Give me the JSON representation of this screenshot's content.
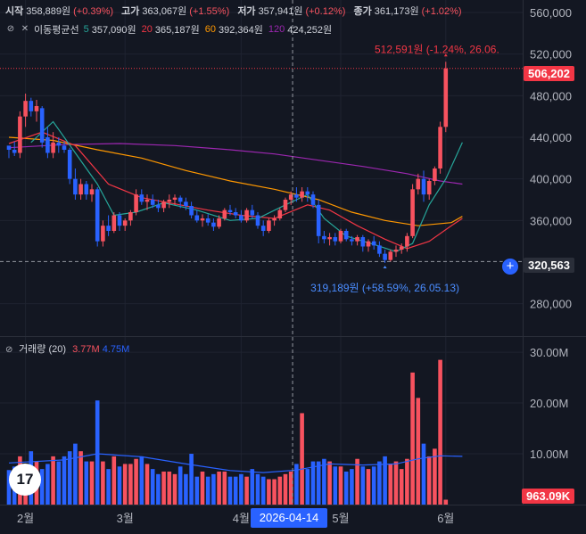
{
  "ohlc": {
    "open_label": "시작",
    "open": "358,889원",
    "open_chg": "(+0.39%)",
    "high_label": "고가",
    "high": "363,067원",
    "high_chg": "(+1.55%)",
    "low_label": "저가",
    "low": "357,941원",
    "low_chg": "(+0.12%)",
    "close_label": "종가",
    "close": "361,173원",
    "close_chg": "(+1.02%)"
  },
  "ma_legend": {
    "name": "이동평균선",
    "items": [
      {
        "period": "5",
        "value": "357,090원",
        "color": "#26a69a"
      },
      {
        "period": "20",
        "value": "365,187원",
        "color": "#f23645"
      },
      {
        "period": "60",
        "value": "392,364원",
        "color": "#ff9800"
      },
      {
        "period": "120",
        "value": "424,252원",
        "color": "#9c27b0"
      }
    ]
  },
  "volume_legend": {
    "name": "거래량 (20)",
    "up": "3.77M",
    "down": "4.75M"
  },
  "annotations": {
    "high_label": "512,591원 (-1.24%, 26.06.",
    "low_label": "319,189원 (+58.59%, 26.05.13)"
  },
  "badges": {
    "last_price": "506,202",
    "crosshair_price": "320,563",
    "last_volume": "963.09K",
    "crosshair_date": "2026-04-14"
  },
  "logo": "17",
  "colors": {
    "up": "#f7525f",
    "down": "#2962ff",
    "bg": "#131722",
    "ma5": "#26a69a",
    "ma20": "#f23645",
    "ma60": "#ff9800",
    "ma120": "#9c27b0",
    "vol_ma": "#2962ff"
  },
  "chart_data": {
    "type": "candlestick",
    "price_axis": {
      "ticks": [
        "560,000",
        "520,000",
        "480,000",
        "440,000",
        "400,000",
        "360,000",
        "280,000"
      ],
      "ylim": [
        248000,
        572000
      ]
    },
    "volume_axis": {
      "ticks": [
        "30.00M",
        "20.00M",
        "10.00M"
      ],
      "ylim": [
        0,
        33000000
      ]
    },
    "x_ticks": [
      {
        "label": "2월",
        "index": 3
      },
      {
        "label": "3월",
        "index": 21
      },
      {
        "label": "4월",
        "index": 42
      },
      {
        "label": "5월",
        "index": 60
      },
      {
        "label": "6월",
        "index": 79
      }
    ],
    "candles": [
      [
        432000,
        431000,
        420000,
        428000,
        6800000
      ],
      [
        428000,
        436000,
        422000,
        425000,
        7500000
      ],
      [
        425000,
        465000,
        420000,
        460000,
        9500000
      ],
      [
        460000,
        482000,
        450000,
        475000,
        7500000
      ],
      [
        475000,
        478000,
        460000,
        465000,
        10500000
      ],
      [
        465000,
        476000,
        455000,
        470000,
        8500000
      ],
      [
        468000,
        470000,
        430000,
        435000,
        7000000
      ],
      [
        440000,
        450000,
        420000,
        425000,
        8000000
      ],
      [
        425000,
        445000,
        420000,
        435000,
        9500000
      ],
      [
        435000,
        440000,
        425000,
        432000,
        8500000
      ],
      [
        432000,
        436000,
        425000,
        428000,
        9500000
      ],
      [
        428000,
        430000,
        395000,
        400000,
        10500000
      ],
      [
        400000,
        410000,
        380000,
        385000,
        12000000
      ],
      [
        385000,
        400000,
        380000,
        395000,
        10500000
      ],
      [
        395000,
        398000,
        380000,
        385000,
        8500000
      ],
      [
        385000,
        395000,
        378000,
        390000,
        8500000
      ],
      [
        390000,
        392000,
        335000,
        340000,
        20500000
      ],
      [
        340000,
        360000,
        335000,
        355000,
        8500000
      ],
      [
        355000,
        365000,
        345000,
        350000,
        7000000
      ],
      [
        350000,
        368000,
        348000,
        365000,
        9500000
      ],
      [
        365000,
        368000,
        350000,
        355000,
        7500000
      ],
      [
        355000,
        362000,
        350000,
        360000,
        8000000
      ],
      [
        360000,
        370000,
        355000,
        368000,
        8000000
      ],
      [
        368000,
        390000,
        365000,
        385000,
        9000000
      ],
      [
        385000,
        390000,
        375000,
        378000,
        9500000
      ],
      [
        378000,
        385000,
        370000,
        380000,
        8000000
      ],
      [
        380000,
        385000,
        372000,
        375000,
        7000000
      ],
      [
        375000,
        380000,
        368000,
        372000,
        6000000
      ],
      [
        372000,
        380000,
        368000,
        378000,
        6500000
      ],
      [
        378000,
        385000,
        372000,
        380000,
        6500000
      ],
      [
        380000,
        385000,
        375000,
        382000,
        6000000
      ],
      [
        382000,
        384000,
        372000,
        378000,
        7500000
      ],
      [
        378000,
        382000,
        370000,
        374000,
        6000000
      ],
      [
        374000,
        378000,
        362000,
        365000,
        10000000
      ],
      [
        365000,
        370000,
        358000,
        360000,
        5500000
      ],
      [
        360000,
        366000,
        354000,
        362000,
        6500000
      ],
      [
        362000,
        366000,
        355000,
        358000,
        5500000
      ],
      [
        358000,
        362000,
        350000,
        354000,
        6000000
      ],
      [
        354000,
        365000,
        352000,
        362000,
        6500000
      ],
      [
        362000,
        372000,
        360000,
        370000,
        6500000
      ],
      [
        370000,
        375000,
        365000,
        368000,
        5500000
      ],
      [
        368000,
        372000,
        362000,
        365000,
        5500000
      ],
      [
        365000,
        370000,
        358000,
        360000,
        6000000
      ],
      [
        360000,
        372000,
        358000,
        370000,
        5500000
      ],
      [
        370000,
        375000,
        362000,
        365000,
        7000000
      ],
      [
        365000,
        368000,
        352000,
        355000,
        6000000
      ],
      [
        355000,
        360000,
        345000,
        350000,
        5500000
      ],
      [
        350000,
        362000,
        348000,
        360000,
        5000000
      ],
      [
        360000,
        365000,
        355000,
        362000,
        5000000
      ],
      [
        362000,
        372000,
        360000,
        370000,
        5500000
      ],
      [
        370000,
        382000,
        368000,
        380000,
        6000000
      ],
      [
        380000,
        388000,
        375000,
        385000,
        6500000
      ],
      [
        385000,
        392000,
        378000,
        382000,
        8000000
      ],
      [
        382000,
        392000,
        378000,
        388000,
        18000000
      ],
      [
        388000,
        392000,
        378000,
        385000,
        7000000
      ],
      [
        385000,
        388000,
        372000,
        375000,
        8500000
      ],
      [
        375000,
        380000,
        338000,
        345000,
        8500000
      ],
      [
        345000,
        350000,
        338000,
        342000,
        9000000
      ],
      [
        342000,
        348000,
        336000,
        344000,
        8500000
      ],
      [
        344000,
        348000,
        336000,
        340000,
        7500000
      ],
      [
        340000,
        352000,
        338000,
        350000,
        7500000
      ],
      [
        350000,
        352000,
        340000,
        342000,
        6500000
      ],
      [
        342000,
        345000,
        336000,
        340000,
        7000000
      ],
      [
        340000,
        346000,
        336000,
        344000,
        9000000
      ],
      [
        344000,
        346000,
        330000,
        335000,
        7500000
      ],
      [
        335000,
        342000,
        330000,
        340000,
        7000000
      ],
      [
        340000,
        345000,
        332000,
        336000,
        7500000
      ],
      [
        336000,
        340000,
        325000,
        328000,
        8500000
      ],
      [
        328000,
        332000,
        319189,
        322000,
        9500000
      ],
      [
        322000,
        332000,
        320000,
        330000,
        8000000
      ],
      [
        330000,
        336000,
        325000,
        332000,
        8500000
      ],
      [
        332000,
        338000,
        328000,
        335000,
        7000000
      ],
      [
        335000,
        348000,
        330000,
        345000,
        9000000
      ],
      [
        345000,
        395000,
        343000,
        390000,
        26000000
      ],
      [
        390000,
        405000,
        385000,
        400000,
        21000000
      ],
      [
        400000,
        408000,
        378000,
        385000,
        12000000
      ],
      [
        385000,
        400000,
        380000,
        398000,
        9500000
      ],
      [
        398000,
        412000,
        394000,
        410000,
        11000000
      ],
      [
        410000,
        455000,
        405000,
        450000,
        28500000
      ],
      [
        450000,
        512591,
        445000,
        506202,
        963090
      ]
    ],
    "ma5": [
      [
        4,
        435000
      ],
      [
        8,
        455000
      ],
      [
        12,
        425000
      ],
      [
        16,
        395000
      ],
      [
        19,
        365000
      ],
      [
        23,
        368000
      ],
      [
        28,
        377000
      ],
      [
        34,
        370000
      ],
      [
        40,
        360000
      ],
      [
        45,
        362000
      ],
      [
        50,
        375000
      ],
      [
        54,
        385000
      ],
      [
        57,
        362000
      ],
      [
        61,
        345000
      ],
      [
        66,
        337000
      ],
      [
        70,
        330000
      ],
      [
        73,
        338000
      ],
      [
        76,
        375000
      ],
      [
        79,
        400000
      ],
      [
        82,
        435000
      ]
    ],
    "ma20": [
      [
        0,
        434000
      ],
      [
        6,
        445000
      ],
      [
        12,
        432000
      ],
      [
        18,
        395000
      ],
      [
        24,
        382000
      ],
      [
        30,
        376000
      ],
      [
        36,
        370000
      ],
      [
        42,
        365000
      ],
      [
        48,
        362000
      ],
      [
        54,
        375000
      ],
      [
        58,
        370000
      ],
      [
        63,
        355000
      ],
      [
        68,
        342000
      ],
      [
        72,
        333000
      ],
      [
        76,
        340000
      ],
      [
        80,
        355000
      ],
      [
        82,
        362000
      ]
    ],
    "ma60": [
      [
        0,
        440000
      ],
      [
        8,
        437000
      ],
      [
        16,
        428000
      ],
      [
        24,
        420000
      ],
      [
        32,
        408000
      ],
      [
        40,
        398000
      ],
      [
        48,
        390000
      ],
      [
        56,
        380000
      ],
      [
        62,
        368000
      ],
      [
        68,
        360000
      ],
      [
        74,
        355000
      ],
      [
        80,
        358000
      ],
      [
        82,
        364000
      ]
    ],
    "ma120": [
      [
        0,
        430000
      ],
      [
        10,
        433000
      ],
      [
        20,
        434000
      ],
      [
        30,
        432000
      ],
      [
        40,
        428000
      ],
      [
        48,
        424000
      ],
      [
        56,
        418000
      ],
      [
        64,
        412000
      ],
      [
        72,
        405000
      ],
      [
        78,
        398000
      ],
      [
        82,
        395000
      ]
    ],
    "vol_ma": [
      [
        0,
        8200000
      ],
      [
        10,
        8800000
      ],
      [
        16,
        10000000
      ],
      [
        24,
        9400000
      ],
      [
        32,
        8000000
      ],
      [
        40,
        6700000
      ],
      [
        46,
        6300000
      ],
      [
        52,
        6800000
      ],
      [
        58,
        8000000
      ],
      [
        64,
        7800000
      ],
      [
        70,
        8000000
      ],
      [
        74,
        9000000
      ],
      [
        78,
        9600000
      ],
      [
        82,
        9500000
      ]
    ]
  }
}
